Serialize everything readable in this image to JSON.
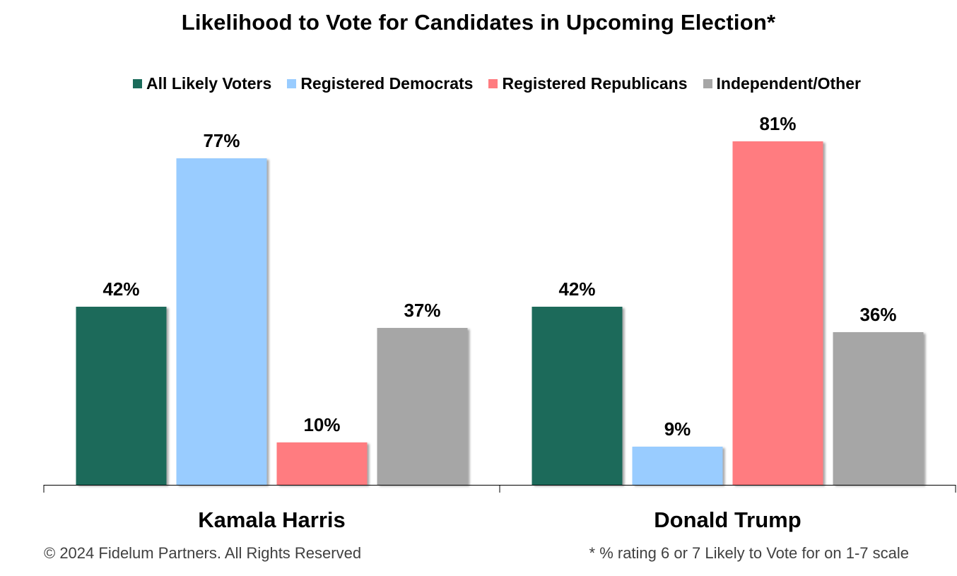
{
  "chart_data": {
    "type": "bar",
    "title": "Likelihood to Vote for Candidates in Upcoming Election*",
    "categories": [
      "Kamala Harris",
      "Donald Trump"
    ],
    "series": [
      {
        "name": "All Likely Voters",
        "color": "#1a6b5a",
        "values": [
          42,
          42
        ],
        "labels": [
          "42%",
          "42%"
        ]
      },
      {
        "name": "Registered Democrats",
        "color": "#99ccff",
        "values": [
          77,
          9
        ],
        "labels": [
          "77%",
          "9%"
        ]
      },
      {
        "name": "Registered Republicans",
        "color": "#ff7c80",
        "values": [
          10,
          81
        ],
        "labels": [
          "10%",
          "81%"
        ]
      },
      {
        "name": "Independent/Other",
        "color": "#a6a6a6",
        "values": [
          37,
          36
        ],
        "labels": [
          "37%",
          "36%"
        ]
      }
    ],
    "ylim": [
      0,
      100
    ],
    "grid": false,
    "legend_position": "top",
    "xlabel": "",
    "ylabel": ""
  },
  "footer": {
    "copyright": "© 2024 Fidelum Partners. All Rights Reserved",
    "note": "* % rating 6 or 7 Likely to Vote for on 1-7 scale"
  }
}
